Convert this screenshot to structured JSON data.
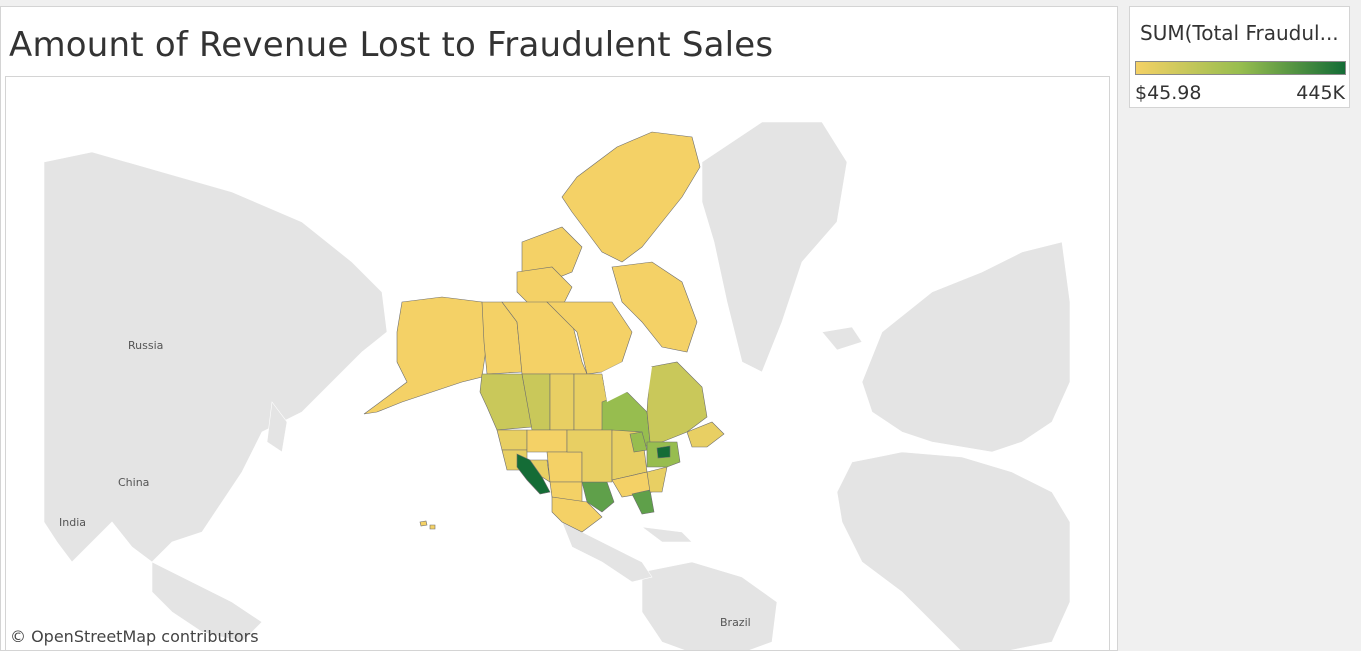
{
  "dashboard": {
    "title": "Amount of Revenue Lost to Fraudulent Sales"
  },
  "legend": {
    "title": "SUM(Total Fraudul...",
    "min_label": "$45.98",
    "max_label": "445K",
    "color_low": "#f4d166",
    "color_mid": "#97bd4f",
    "color_high": "#146c36"
  },
  "map": {
    "place_labels": [
      "Russia",
      "China",
      "India",
      "Brazil"
    ],
    "attribution": "© OpenStreetMap contributors",
    "land_color": "#e4e4e4",
    "region_colors": {
      "lowest": "#f4d166",
      "low": "#e8cf63",
      "medium_low": "#c9c85a",
      "medium": "#97bd4f",
      "high": "#5fa04a",
      "highest": "#146c36"
    }
  }
}
